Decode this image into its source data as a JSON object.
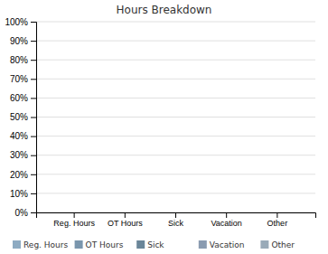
{
  "chart_data": {
    "type": "bar",
    "title": "Hours Breakdown",
    "categories": [
      "Reg. Hours",
      "OT Hours",
      "Sick",
      "Vacation",
      "Other"
    ],
    "values": [
      0,
      0,
      0,
      0,
      0
    ],
    "colors": [
      "#8eabc2",
      "#7a96ad",
      "#6a8699",
      "#8a9bb0",
      "#99aab8"
    ],
    "ylim": [
      0,
      1.0
    ],
    "yticks": [
      {
        "value": 0,
        "label": "0%"
      },
      {
        "value": 0.1,
        "label": "10%"
      },
      {
        "value": 0.2,
        "label": "20%"
      },
      {
        "value": 0.3,
        "label": "30%"
      },
      {
        "value": 0.4,
        "label": "40%"
      },
      {
        "value": 0.5,
        "label": "50%"
      },
      {
        "value": 0.6,
        "label": "60%"
      },
      {
        "value": 0.7,
        "label": "70%"
      },
      {
        "value": 0.8,
        "label": "80%"
      },
      {
        "value": 0.9,
        "label": "90%"
      },
      {
        "value": 1.0,
        "label": "100%"
      }
    ],
    "grid": true,
    "legend": "bottom"
  }
}
